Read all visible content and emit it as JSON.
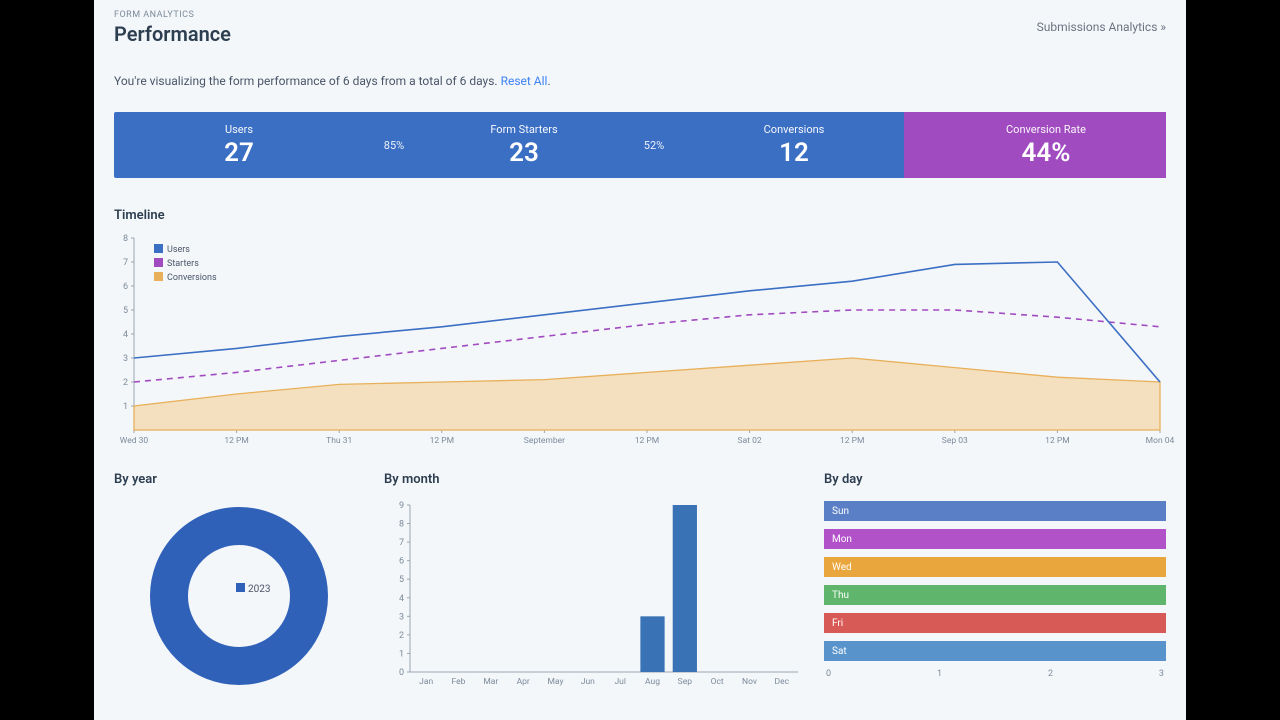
{
  "breadcrumb": "FORM ANALYTICS",
  "title": "Performance",
  "subs_link": "Submissions Analytics »",
  "desc_prefix": "You're visualizing the form performance of 6 days from a total of 6 days. ",
  "reset_link": "Reset All",
  "stats": {
    "users_label": "Users",
    "users_value": "27",
    "pct1": "85%",
    "starters_label": "Form Starters",
    "starters_value": "23",
    "pct2": "52%",
    "conv_label": "Conversions",
    "conv_value": "12",
    "rate_label": "Conversion Rate",
    "rate_value": "44%",
    "blue": "#3b6fc4",
    "purple": "#a14bc1"
  },
  "timeline": {
    "title": "Timeline",
    "ylim": [
      0,
      8
    ],
    "yticks": [
      1,
      2,
      3,
      4,
      5,
      6,
      7,
      8
    ],
    "xlabels": [
      "Wed 30",
      "12 PM",
      "Thu 31",
      "12 PM",
      "September",
      "12 PM",
      "Sat 02",
      "12 PM",
      "Sep 03",
      "12 PM",
      "Mon 04"
    ],
    "legend": [
      {
        "label": "Users",
        "color": "#3b6fc4"
      },
      {
        "label": "Starters",
        "color": "#a14bc1"
      },
      {
        "label": "Conversions",
        "color": "#e8b05a"
      }
    ],
    "series": {
      "users": [
        3.0,
        3.4,
        3.9,
        4.3,
        4.8,
        5.3,
        5.8,
        6.2,
        6.9,
        7.0,
        2.0
      ],
      "starters": [
        2.0,
        2.4,
        2.9,
        3.4,
        3.9,
        4.4,
        4.8,
        5.0,
        5.0,
        4.7,
        4.3
      ],
      "conversions": [
        1.0,
        1.5,
        1.9,
        2.0,
        2.1,
        2.4,
        2.7,
        3.0,
        2.6,
        2.2,
        2.0
      ]
    },
    "colors": {
      "users": "#3b6fc4",
      "starters": "#a14bc1",
      "conversions_fill": "#f3d5a5",
      "conversions_line": "#e8b05a",
      "axis": "#9aa5b1",
      "text": "#7b8a9a"
    }
  },
  "by_year": {
    "title": "By year",
    "label": "2023",
    "color": "#3061b8",
    "chip_color": "#3061b8"
  },
  "by_month": {
    "title": "By month",
    "months": [
      "Jan",
      "Feb",
      "Mar",
      "Apr",
      "May",
      "Jun",
      "Jul",
      "Aug",
      "Sep",
      "Oct",
      "Nov",
      "Dec"
    ],
    "values": [
      0,
      0,
      0,
      0,
      0,
      0,
      0,
      3,
      9,
      0,
      0,
      0
    ],
    "ylim": [
      0,
      9
    ],
    "bar_color": "#3a72b6",
    "axis_color": "#9aa5b1",
    "text_color": "#7b8a9a"
  },
  "by_day": {
    "title": "By day",
    "rows": [
      {
        "label": "Sun",
        "color": "#5a7fc7"
      },
      {
        "label": "Mon",
        "color": "#b152c9"
      },
      {
        "label": "Wed",
        "color": "#e9a63c"
      },
      {
        "label": "Thu",
        "color": "#5eb56b"
      },
      {
        "label": "Fri",
        "color": "#d85a56"
      },
      {
        "label": "Sat",
        "color": "#5993cc"
      }
    ],
    "xticks": [
      "0",
      "1",
      "2",
      "3"
    ]
  }
}
